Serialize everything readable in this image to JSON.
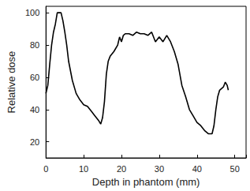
{
  "chart_data": {
    "type": "line",
    "x_label": "Depth in phantom (mm)",
    "y_label": "Relative dose",
    "x": [
      0,
      0.5,
      1,
      1.5,
      2,
      2.5,
      3,
      3.5,
      4,
      4.5,
      5,
      5.5,
      6,
      7,
      8,
      9,
      10,
      11,
      12,
      13,
      14,
      14.5,
      15,
      15.5,
      16,
      16.5,
      17,
      18,
      19,
      19.5,
      20,
      20.5,
      21,
      22,
      23,
      24,
      25,
      26,
      27,
      28,
      29,
      30,
      31,
      32,
      33,
      34,
      35,
      36,
      37,
      38,
      39,
      40,
      41,
      42,
      43,
      44,
      44.5,
      45,
      45.5,
      46,
      47,
      47.5,
      48,
      48.3
    ],
    "values": [
      50,
      55,
      68,
      80,
      88,
      93,
      100,
      100,
      100,
      95,
      88,
      80,
      70,
      58,
      50,
      46,
      43,
      42,
      39,
      36,
      33,
      31,
      35,
      45,
      62,
      70,
      73,
      76,
      80,
      85,
      82,
      86,
      87,
      87,
      86,
      88,
      87,
      87,
      86,
      88,
      82,
      85,
      82,
      86,
      82,
      76,
      68,
      55,
      48,
      40,
      36,
      32,
      30,
      27,
      25,
      25,
      30,
      40,
      48,
      52,
      54,
      57,
      55,
      52
    ],
    "color": "#000000",
    "xlim": [
      0,
      53
    ],
    "xticks": [
      0,
      10,
      20,
      30,
      40,
      50
    ],
    "ylim": [
      10,
      104
    ],
    "yticks": [
      20,
      40,
      60,
      80,
      100
    ],
    "grid": false
  }
}
